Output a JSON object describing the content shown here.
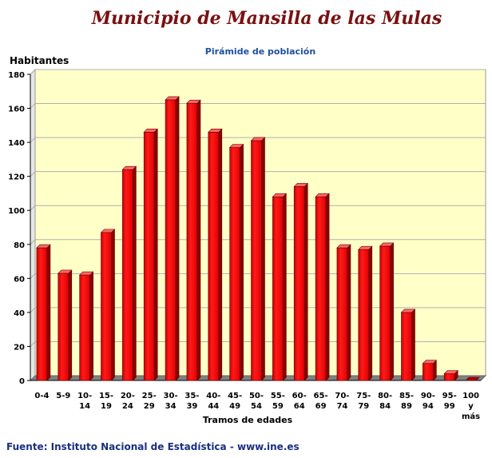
{
  "header": {
    "main_title": "Municipio de Mansilla de las Mulas",
    "chart_title": "Pirámide de población",
    "y_axis_label": "Habitantes",
    "x_axis_label": "Tramos de edades",
    "footer": "Fuente: Instituto Nacional de Estadística - www.ine.es"
  },
  "colors": {
    "bar": "#ff0000",
    "plot_background": "#ffffc8",
    "title": "#7a1010",
    "subtitle": "#1f4fa0"
  },
  "chart_data": {
    "type": "bar",
    "title": "Pirámide de población",
    "xlabel": "Tramos de edades",
    "ylabel": "Habitantes",
    "ylim": [
      0,
      180
    ],
    "yticks": [
      0,
      20,
      40,
      60,
      80,
      100,
      120,
      140,
      160,
      180
    ],
    "grid": true,
    "categories": [
      "0-4",
      "5-9",
      "10-14",
      "15-19",
      "20-24",
      "25-29",
      "30-34",
      "35-39",
      "40-44",
      "45-49",
      "50-54",
      "55-59",
      "60-64",
      "65-69",
      "70-74",
      "75-79",
      "80-84",
      "85-89",
      "90-94",
      "95-99",
      "100 y más"
    ],
    "category_lines": [
      [
        "0-4"
      ],
      [
        "5-9"
      ],
      [
        "10-",
        "14"
      ],
      [
        "15-",
        "19"
      ],
      [
        "20-",
        "24"
      ],
      [
        "25-",
        "29"
      ],
      [
        "30-",
        "34"
      ],
      [
        "35-",
        "39"
      ],
      [
        "40-",
        "44"
      ],
      [
        "45-",
        "49"
      ],
      [
        "50-",
        "54"
      ],
      [
        "55-",
        "59"
      ],
      [
        "60-",
        "64"
      ],
      [
        "65-",
        "69"
      ],
      [
        "70-",
        "74"
      ],
      [
        "75-",
        "79"
      ],
      [
        "80-",
        "84"
      ],
      [
        "85-",
        "89"
      ],
      [
        "90-",
        "94"
      ],
      [
        "95-",
        "99"
      ],
      [
        "100",
        "y",
        "más"
      ]
    ],
    "values": [
      78,
      63,
      62,
      87,
      124,
      146,
      165,
      163,
      146,
      137,
      141,
      108,
      114,
      108,
      78,
      77,
      79,
      40,
      10,
      4,
      0
    ]
  }
}
